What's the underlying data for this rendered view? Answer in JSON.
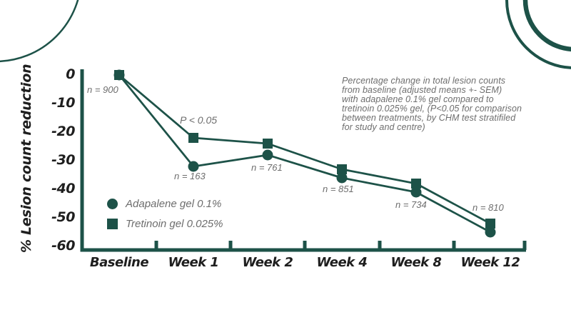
{
  "chart_data": {
    "type": "line",
    "ylabel": "% Lesion count reduction",
    "categories": [
      "Baseline",
      "Week 1",
      "Week 2",
      "Week 4",
      "Week 8",
      "Week 12"
    ],
    "y_ticks": [
      0,
      -10,
      -20,
      -30,
      -40,
      -50,
      -60
    ],
    "ylim": [
      -60,
      0
    ],
    "grid": false,
    "legend_position": "inside-left",
    "series": [
      {
        "name": "Adapalene gel 0.1%",
        "marker": "circle",
        "values": [
          0,
          -32,
          -28,
          -36,
          -41,
          -55
        ]
      },
      {
        "name": "Tretinoin gel 0.025%",
        "marker": "square",
        "values": [
          0,
          -22,
          -24,
          -33,
          -38,
          -52
        ]
      }
    ],
    "point_labels": [
      "n = 900",
      "n = 163",
      "n = 761",
      "n = 851",
      "n = 734",
      "n = 810"
    ],
    "significance_label": "P < 0.05",
    "line_color": "#1d5248"
  },
  "annotation": {
    "lines": [
      "Percentage change in total lesion counts",
      "from baseline (adjusted means +- SEM)",
      "with adapalene 0.1% gel compared to",
      "tretinoin 0.025% gel, (P<0.05 for comparison",
      "between treatments, by CHM test stratifiled",
      "for study and centre)"
    ]
  },
  "colors": {
    "accent_green": "#1d5248",
    "text_dark": "#1e1e1e",
    "text_gray": "#6d6d6d",
    "background": "#ffffff"
  }
}
